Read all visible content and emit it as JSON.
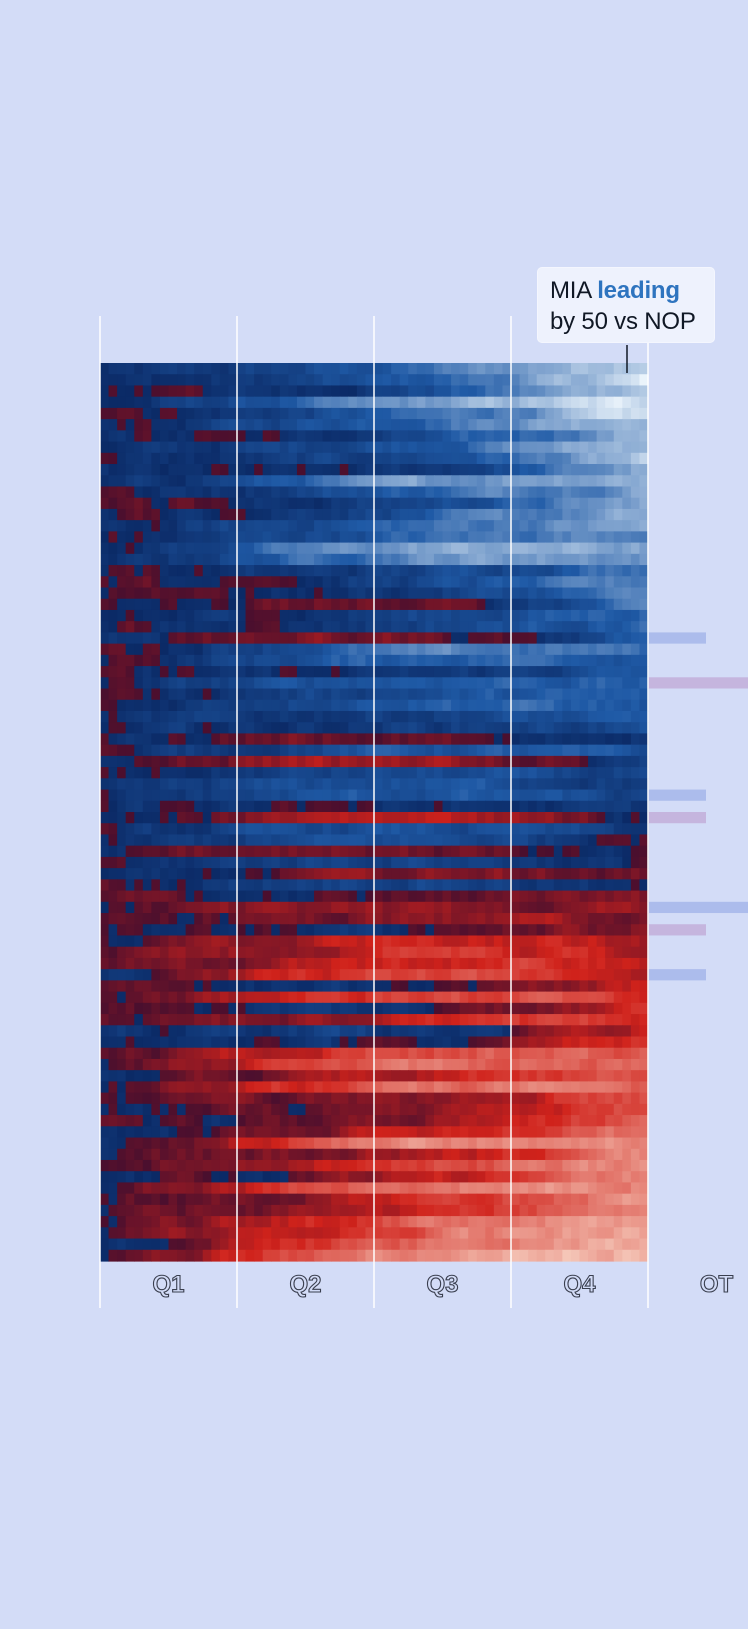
{
  "chart_data": {
    "type": "heatmap",
    "title": "",
    "x_periods": [
      "Q1",
      "Q2",
      "Q3",
      "Q4",
      "OT"
    ],
    "y_unit": "games",
    "rows_count": 80,
    "value_meaning": "score margin",
    "value_range": [
      -50,
      50
    ],
    "color_scale": {
      "negative_dark": "#4a0f2e",
      "negative": "#d0221b",
      "negative_light": "#fbe3d3",
      "positive_dark": "#0b2a66",
      "positive": "#1f5aa6",
      "positive_light": "#f4fbff"
    },
    "overtime_rows": [
      24,
      28,
      38,
      40,
      48,
      50,
      54
    ],
    "annotation": {
      "team": "MIA",
      "state": "leading",
      "detail": "by 50 vs NOP",
      "row_index": 0,
      "time_fraction": 0.96
    }
  },
  "colors": {
    "background": "#d3dcf7",
    "grid_line": "#ffffff",
    "tick_label": "#d3dcf7",
    "tick_stroke": "#3a3f4f",
    "callout_bg": "#eef2fd",
    "accent": "#2e74bf",
    "text": "#101825"
  }
}
